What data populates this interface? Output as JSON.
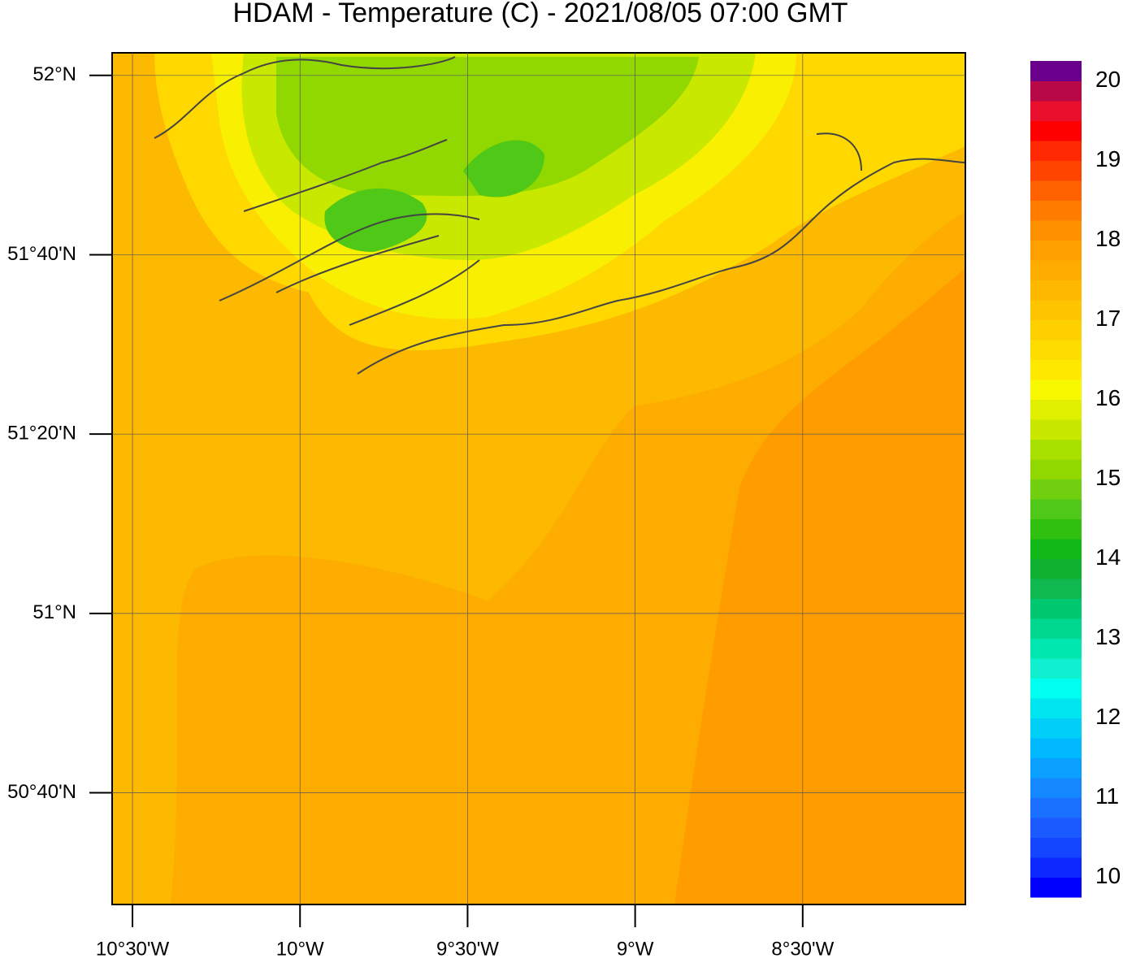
{
  "chart_data": {
    "type": "map",
    "title": "HDAM - Temperature (C)  -  2021/08/05  07:00 GMT",
    "xlim": [
      -10.5607,
      -8.0146
    ],
    "ylim": [
      50.459,
      52.042
    ],
    "xticks": [
      {
        "value": -10.5,
        "label": "10°30'W"
      },
      {
        "value": -10,
        "label": "10°W"
      },
      {
        "value": -9.5,
        "label": "9°30'W"
      },
      {
        "value": -9,
        "label": "9°W"
      },
      {
        "value": -8.5,
        "label": "8°30'W"
      }
    ],
    "yticks": [
      {
        "value": 52,
        "label": "52°N"
      },
      {
        "value": 51.6667,
        "label": "51°40'N"
      },
      {
        "value": 51.3333,
        "label": "51°20'N"
      },
      {
        "value": 51,
        "label": "51°N"
      },
      {
        "value": 50.6667,
        "label": "50°40'N"
      }
    ],
    "grid": true,
    "colorbar": {
      "lim": [
        9.75,
        20.25
      ],
      "ticks": [
        10,
        11,
        12,
        13,
        14,
        15,
        16,
        17,
        18,
        19,
        20
      ],
      "colors": [
        "#0000ff",
        "#0a28ff",
        "#1446ff",
        "#1a5aff",
        "#1a70ff",
        "#1488ff",
        "#0aa0ff",
        "#00b8ff",
        "#00d0f8",
        "#00e6f0",
        "#00fff0",
        "#10f0d0",
        "#00e8b0",
        "#00d890",
        "#00c870",
        "#10b850",
        "#10b030",
        "#10b818",
        "#30c010",
        "#50c818",
        "#70d010",
        "#90d800",
        "#a8e000",
        "#c8e800",
        "#e0f000",
        "#f8f800",
        "#ffe800",
        "#ffdc00",
        "#ffd000",
        "#ffc400",
        "#ffb800",
        "#ffac00",
        "#ffa000",
        "#ff9000",
        "#ff7c00",
        "#ff6000",
        "#ff4400",
        "#ff2800",
        "#ff0000",
        "#e8102c",
        "#b80848",
        "#6a008c"
      ]
    }
  }
}
